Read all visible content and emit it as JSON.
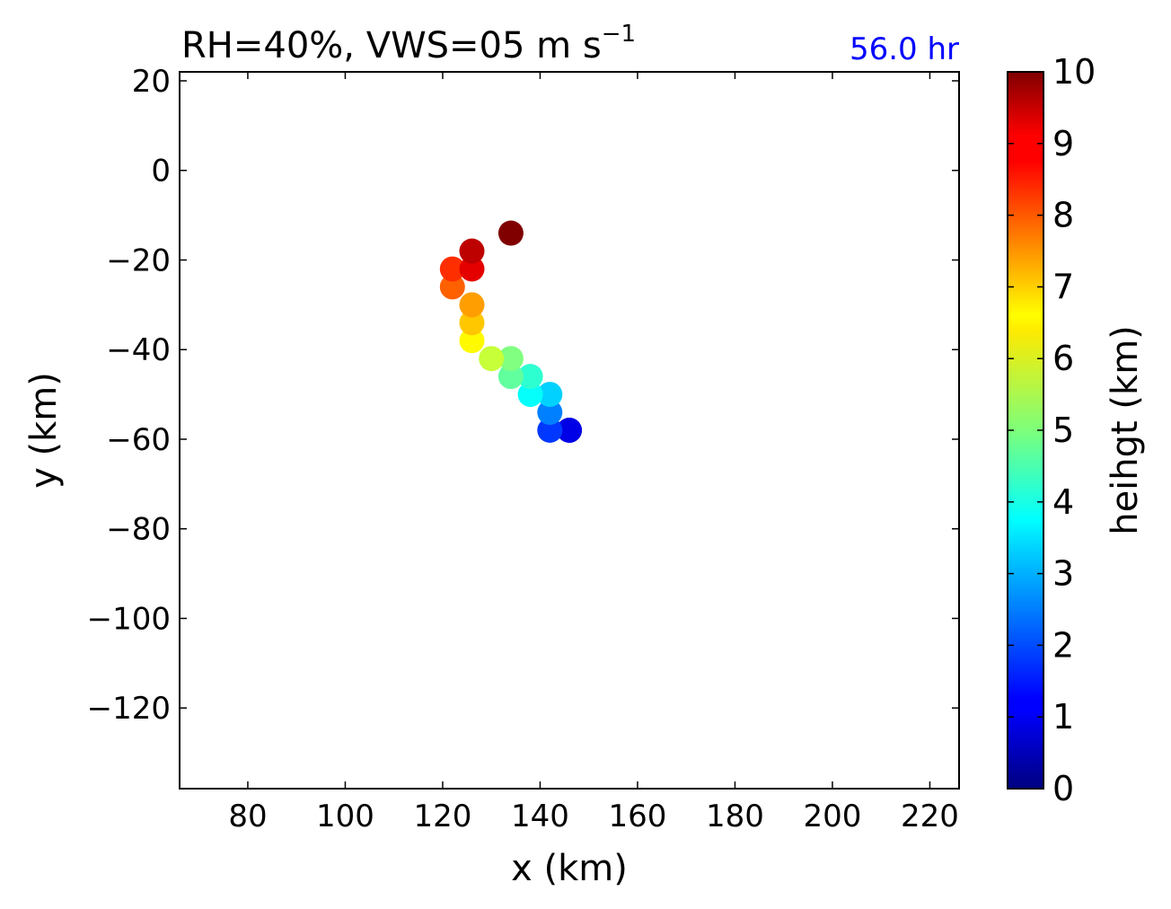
{
  "chart_data": {
    "type": "scatter",
    "title_main": "RH=40%, VWS=05 m s",
    "title_sup": "−1",
    "annotation": "56.0 hr",
    "annotation_color": "#0000ff",
    "xlabel": "x (km)",
    "ylabel": "y (km)",
    "xlim": [
      66,
      226
    ],
    "ylim": [
      -138,
      22
    ],
    "xticks": [
      80,
      100,
      120,
      140,
      160,
      180,
      200,
      220
    ],
    "yticks": [
      20,
      0,
      -20,
      -40,
      -60,
      -80,
      -100,
      -120
    ],
    "xtick_labels": [
      "80",
      "100",
      "120",
      "140",
      "160",
      "180",
      "200",
      "220"
    ],
    "ytick_labels": [
      "20",
      "0",
      "−20",
      "−40",
      "−60",
      "−80",
      "−100",
      "−120"
    ],
    "grid": false,
    "colorbar": {
      "label": "heihgt (km)",
      "min": 0,
      "max": 10,
      "ticks": [
        0,
        1,
        2,
        3,
        4,
        5,
        6,
        7,
        8,
        9,
        10
      ],
      "tick_labels": [
        "0",
        "1",
        "2",
        "3",
        "4",
        "5",
        "6",
        "7",
        "8",
        "9",
        "10"
      ],
      "colormap": "jet"
    },
    "points": [
      {
        "x": 146,
        "y": -58,
        "height": 0.5
      },
      {
        "x": 146,
        "y": -58,
        "height": 1.0
      },
      {
        "x": 142,
        "y": -58,
        "height": 1.8
      },
      {
        "x": 142,
        "y": -54,
        "height": 2.5
      },
      {
        "x": 142,
        "y": -50,
        "height": 3.3
      },
      {
        "x": 138,
        "y": -50,
        "height": 3.8
      },
      {
        "x": 138,
        "y": -46,
        "height": 4.2
      },
      {
        "x": 134,
        "y": -46,
        "height": 4.7
      },
      {
        "x": 134,
        "y": -42,
        "height": 5.0
      },
      {
        "x": 130,
        "y": -42,
        "height": 5.7
      },
      {
        "x": 126,
        "y": -38,
        "height": 6.3
      },
      {
        "x": 126,
        "y": -34,
        "height": 6.8
      },
      {
        "x": 126,
        "y": -30,
        "height": 7.2
      },
      {
        "x": 122,
        "y": -26,
        "height": 7.8
      },
      {
        "x": 122,
        "y": -22,
        "height": 8.3
      },
      {
        "x": 126,
        "y": -22,
        "height": 9.0
      },
      {
        "x": 126,
        "y": -18,
        "height": 9.4
      },
      {
        "x": 134,
        "y": -14,
        "height": 10.0
      }
    ]
  }
}
